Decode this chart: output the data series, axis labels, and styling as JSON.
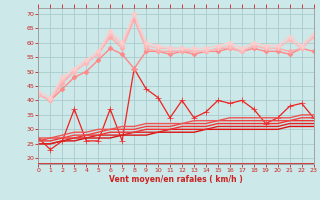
{
  "xlabel": "Vent moyen/en rafales ( km/h )",
  "xlim": [
    0,
    23
  ],
  "ylim": [
    18,
    72
  ],
  "yticks": [
    20,
    25,
    30,
    35,
    40,
    45,
    50,
    55,
    60,
    65,
    70
  ],
  "xticks": [
    0,
    1,
    2,
    3,
    4,
    5,
    6,
    7,
    8,
    9,
    10,
    11,
    12,
    13,
    14,
    15,
    16,
    17,
    18,
    19,
    20,
    21,
    22,
    23
  ],
  "bg_color": "#cce8e8",
  "grid_color": "#aacccc",
  "series": [
    {
      "color": "#ee2222",
      "lw": 0.9,
      "marker": "+",
      "ms": 4,
      "y": [
        27,
        23,
        26,
        37,
        26,
        26,
        37,
        26,
        51,
        44,
        41,
        34,
        40,
        34,
        36,
        40,
        39,
        40,
        37,
        32,
        34,
        38,
        39,
        34
      ]
    },
    {
      "color": "#dd1111",
      "lw": 1.0,
      "marker": null,
      "ms": 0,
      "y": [
        25,
        25,
        26,
        26,
        27,
        27,
        27,
        28,
        28,
        28,
        29,
        29,
        29,
        29,
        30,
        30,
        30,
        30,
        30,
        30,
        30,
        31,
        31,
        31
      ]
    },
    {
      "color": "#dd2222",
      "lw": 1.0,
      "marker": null,
      "ms": 0,
      "y": [
        25,
        25,
        26,
        27,
        27,
        28,
        28,
        28,
        29,
        29,
        29,
        30,
        30,
        30,
        30,
        31,
        31,
        31,
        31,
        31,
        31,
        32,
        32,
        32
      ]
    },
    {
      "color": "#ee3333",
      "lw": 1.0,
      "marker": null,
      "ms": 0,
      "y": [
        26,
        26,
        27,
        27,
        28,
        28,
        29,
        29,
        29,
        30,
        30,
        30,
        31,
        31,
        31,
        32,
        32,
        32,
        32,
        32,
        32,
        33,
        33,
        33
      ]
    },
    {
      "color": "#ee4444",
      "lw": 1.0,
      "marker": null,
      "ms": 0,
      "y": [
        26,
        27,
        27,
        28,
        28,
        29,
        30,
        30,
        30,
        31,
        31,
        31,
        32,
        32,
        32,
        33,
        33,
        33,
        33,
        33,
        33,
        33,
        34,
        34
      ]
    },
    {
      "color": "#ee5555",
      "lw": 1.0,
      "marker": null,
      "ms": 0,
      "y": [
        27,
        27,
        28,
        29,
        29,
        30,
        30,
        31,
        31,
        32,
        32,
        32,
        32,
        33,
        33,
        33,
        34,
        34,
        34,
        34,
        34,
        34,
        35,
        35
      ]
    },
    {
      "color": "#ff8888",
      "lw": 1.0,
      "marker": "D",
      "ms": 2.5,
      "y": [
        42,
        40,
        44,
        48,
        50,
        54,
        58,
        56,
        51,
        57,
        57,
        56,
        57,
        56,
        57,
        57,
        58,
        57,
        58,
        57,
        57,
        56,
        58,
        57
      ]
    },
    {
      "color": "#ffaaaa",
      "lw": 1.0,
      "marker": "D",
      "ms": 2.5,
      "y": [
        42,
        40,
        46,
        50,
        53,
        56,
        62,
        58,
        68,
        58,
        57,
        57,
        57,
        57,
        57,
        58,
        58,
        57,
        59,
        58,
        58,
        57,
        58,
        62
      ]
    },
    {
      "color": "#ffbbbb",
      "lw": 1.0,
      "marker": "D",
      "ms": 2.5,
      "y": [
        42,
        40,
        47,
        50,
        53,
        56,
        63,
        59,
        70,
        59,
        58,
        58,
        58,
        57,
        57,
        58,
        59,
        57,
        59,
        58,
        58,
        61,
        58,
        62
      ]
    },
    {
      "color": "#ffcccc",
      "lw": 1.0,
      "marker": "D",
      "ms": 2.5,
      "y": [
        43,
        41,
        48,
        51,
        54,
        57,
        64,
        60,
        70,
        60,
        59,
        58,
        58,
        58,
        58,
        59,
        60,
        58,
        60,
        59,
        59,
        62,
        59,
        63
      ]
    }
  ]
}
